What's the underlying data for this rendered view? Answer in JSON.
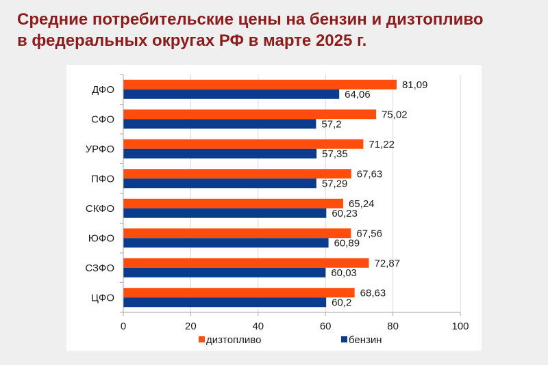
{
  "colors": {
    "title": "#8c1b1b"
  },
  "chart_data": {
    "type": "bar",
    "orientation": "horizontal",
    "title": "Средние потребительские цены на бензин и дизтопливо\nв федеральных округах РФ в марте 2025 г.",
    "categories": [
      "ДФО",
      "СФО",
      "УРФО",
      "ПФО",
      "СКФО",
      "ЮФО",
      "СЗФО",
      "ЦФО"
    ],
    "series": [
      {
        "name": "дизтопливо",
        "color": "#ff4d0d",
        "values": [
          81.09,
          75.02,
          71.22,
          67.63,
          65.24,
          67.56,
          72.87,
          68.63
        ],
        "labels": [
          "81,09",
          "75,02",
          "71,22",
          "67,63",
          "65,24",
          "67,56",
          "72,87",
          "68,63"
        ]
      },
      {
        "name": "бензин",
        "color": "#0b3b8c",
        "values": [
          64.06,
          57.2,
          57.35,
          57.29,
          60.23,
          60.89,
          60.03,
          60.2
        ],
        "labels": [
          "64,06",
          "57,2",
          "57,35",
          "57,29",
          "60,23",
          "60,89",
          "60,03",
          "60,2"
        ]
      }
    ],
    "xlim": [
      0,
      100
    ],
    "xticks": [
      0,
      20,
      40,
      60,
      80,
      100
    ],
    "grid": "vertical",
    "legend": "bottom"
  }
}
